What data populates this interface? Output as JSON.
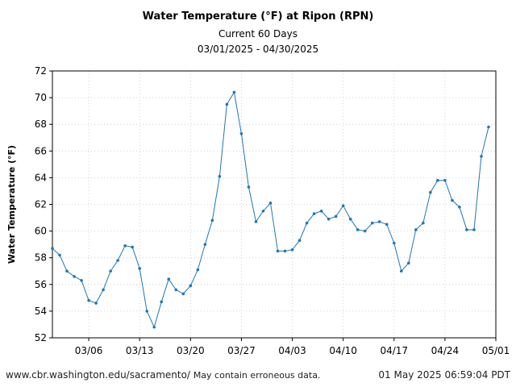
{
  "header": {
    "title": "Water Temperature (°F) at Ripon (RPN)",
    "subtitle": "Current 60 Days",
    "date_range": "03/01/2025 - 04/30/2025"
  },
  "footer": {
    "url": "www.cbr.washington.edu/sacramento/",
    "note": "May contain erroneous data.",
    "timestamp": "01 May 2025 06:59:04 PDT"
  },
  "chart_data": {
    "type": "line",
    "title": "Water Temperature (°F) at Ripon (RPN)",
    "subtitle": "Current 60 Days",
    "ylabel": "Water Temperature (°F)",
    "xlabel": "",
    "xlim": [
      "2025-03-01",
      "2025-05-01"
    ],
    "ylim": [
      52,
      72
    ],
    "yticks": [
      52,
      54,
      56,
      58,
      60,
      62,
      64,
      66,
      68,
      70,
      72
    ],
    "xticks": [
      {
        "date": "2025-03-06",
        "label": "03/06"
      },
      {
        "date": "2025-03-13",
        "label": "03/13"
      },
      {
        "date": "2025-03-20",
        "label": "03/20"
      },
      {
        "date": "2025-03-27",
        "label": "03/27"
      },
      {
        "date": "2025-04-03",
        "label": "04/03"
      },
      {
        "date": "2025-04-10",
        "label": "04/10"
      },
      {
        "date": "2025-04-17",
        "label": "04/17"
      },
      {
        "date": "2025-04-24",
        "label": "04/24"
      },
      {
        "date": "2025-05-01",
        "label": "05/01"
      }
    ],
    "grid": true,
    "line_color": "#1f77b4",
    "series": [
      {
        "x": [
          "2025-03-01",
          "2025-03-02",
          "2025-03-03",
          "2025-03-04",
          "2025-03-05",
          "2025-03-06",
          "2025-03-07",
          "2025-03-08",
          "2025-03-09",
          "2025-03-10",
          "2025-03-11",
          "2025-03-12",
          "2025-03-13",
          "2025-03-14",
          "2025-03-15",
          "2025-03-16",
          "2025-03-17",
          "2025-03-18",
          "2025-03-19",
          "2025-03-20",
          "2025-03-21",
          "2025-03-22",
          "2025-03-23",
          "2025-03-24",
          "2025-03-25",
          "2025-03-26",
          "2025-03-27",
          "2025-03-28",
          "2025-03-29",
          "2025-03-30",
          "2025-03-31",
          "2025-04-01",
          "2025-04-02",
          "2025-04-03",
          "2025-04-04",
          "2025-04-05",
          "2025-04-06",
          "2025-04-07",
          "2025-04-08",
          "2025-04-09",
          "2025-04-10",
          "2025-04-11",
          "2025-04-12",
          "2025-04-13",
          "2025-04-14",
          "2025-04-15",
          "2025-04-16",
          "2025-04-17",
          "2025-04-18",
          "2025-04-19",
          "2025-04-20",
          "2025-04-21",
          "2025-04-22",
          "2025-04-23",
          "2025-04-24",
          "2025-04-25",
          "2025-04-26",
          "2025-04-27",
          "2025-04-28",
          "2025-04-29",
          "2025-04-30"
        ],
        "y": [
          58.7,
          58.2,
          57.0,
          56.6,
          56.3,
          54.8,
          54.6,
          55.6,
          57.0,
          57.8,
          58.9,
          58.8,
          57.2,
          54.0,
          52.8,
          54.7,
          56.4,
          55.6,
          55.3,
          55.9,
          57.1,
          59.0,
          60.8,
          64.1,
          69.5,
          70.4,
          67.3,
          63.3,
          60.7,
          61.5,
          62.1,
          58.5,
          58.5,
          58.6,
          59.3,
          60.6,
          61.3,
          61.5,
          60.9,
          61.1,
          61.9,
          60.9,
          60.1,
          60.0,
          60.6,
          60.7,
          60.5,
          59.1,
          57.0,
          57.6,
          60.1,
          60.6,
          62.9,
          63.8,
          63.8,
          62.3,
          61.8,
          60.1,
          60.1,
          65.6,
          67.8
        ]
      }
    ]
  }
}
